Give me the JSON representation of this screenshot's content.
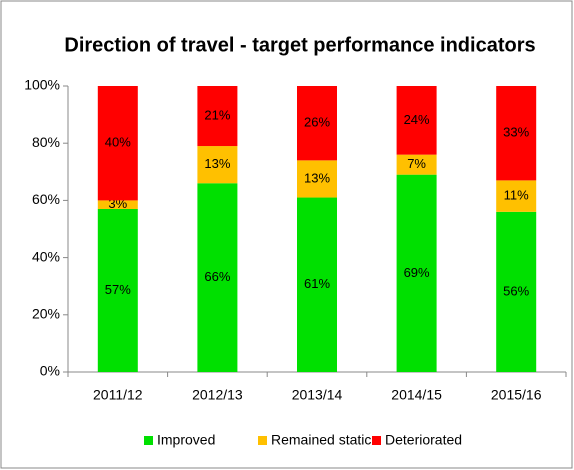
{
  "chart_data": {
    "type": "bar",
    "stacked": true,
    "title": "Direction of travel - target performance indicators",
    "categories": [
      "2011/12",
      "2012/13",
      "2013/14",
      "2014/15",
      "2015/16"
    ],
    "series": [
      {
        "name": "Improved",
        "color": "#00e000",
        "values": [
          57,
          66,
          61,
          69,
          56
        ],
        "value_labels": [
          "57%",
          "66%",
          "61%",
          "69%",
          "56%"
        ]
      },
      {
        "name": "Remained static",
        "color": "#ffc000",
        "values": [
          3,
          13,
          13,
          7,
          11
        ],
        "value_labels": [
          "3%",
          "13%",
          "13%",
          "7%",
          "11%"
        ]
      },
      {
        "name": "Deteriorated",
        "color": "#ff0000",
        "values": [
          40,
          21,
          26,
          24,
          33
        ],
        "value_labels": [
          "40%",
          "21%",
          "26%",
          "24%",
          "33%"
        ]
      }
    ],
    "ylim": [
      0,
      100
    ],
    "yticks": [
      {
        "value": 0,
        "label": "0%"
      },
      {
        "value": 20,
        "label": "20%"
      },
      {
        "value": 40,
        "label": "40%"
      },
      {
        "value": 60,
        "label": "60%"
      },
      {
        "value": 80,
        "label": "80%"
      },
      {
        "value": 100,
        "label": "100%"
      }
    ],
    "grid": false,
    "legend": "bottom"
  }
}
